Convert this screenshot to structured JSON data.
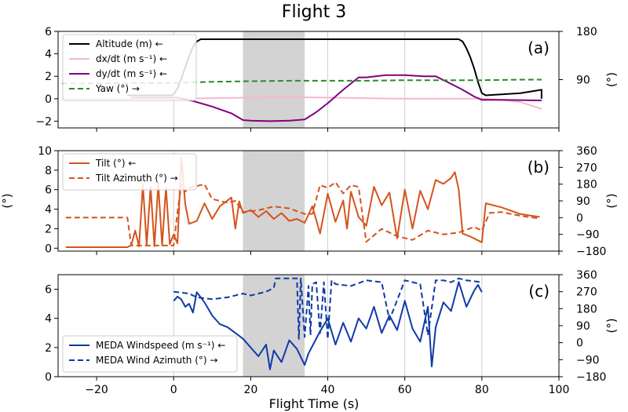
{
  "figure": {
    "title": "Flight 3",
    "xlabel": "Flight Time (s)",
    "xlim": [
      -30,
      100
    ],
    "xticks": [
      -20,
      0,
      20,
      40,
      60,
      80,
      100
    ],
    "shaded_region": [
      18,
      34
    ],
    "vertical_grid": [
      0,
      20,
      40,
      60,
      80
    ]
  },
  "chart_data": [
    {
      "type": "line",
      "panel_label": "(a)",
      "ylim_left": [
        -2.6,
        6
      ],
      "yticks_left": [
        -2,
        0,
        2,
        4,
        6
      ],
      "ylim_right": [
        0,
        180
      ],
      "yticks_right": [
        90,
        180
      ],
      "yticks_right_labels": [
        "90",
        "180"
      ],
      "ylabel_right": "(°)",
      "legend_position": "upper-left",
      "series": [
        {
          "name": "Altitude (m) ←",
          "axis": "left",
          "color": "#000000",
          "dash": "solid",
          "x": [
            -12,
            -0.5,
            0,
            1,
            2,
            3,
            4,
            5,
            6,
            7,
            20,
            40,
            60,
            74,
            75,
            76,
            77,
            78,
            79,
            80,
            81,
            90,
            95.5,
            95.5
          ],
          "y": [
            0.3,
            0.3,
            0.4,
            0.9,
            1.8,
            2.8,
            3.8,
            4.6,
            5.1,
            5.3,
            5.3,
            5.3,
            5.3,
            5.3,
            5.1,
            4.5,
            3.7,
            2.7,
            1.5,
            0.5,
            0.3,
            0.5,
            0.8,
            0
          ]
        },
        {
          "name": "dx/dt (m s⁻¹) ←",
          "axis": "left",
          "color": "#f4b8cf",
          "dash": "solid",
          "x": [
            -29,
            -20,
            -10,
            0,
            10,
            20,
            30,
            40,
            50,
            60,
            70,
            80,
            85,
            90,
            95.5
          ],
          "y": [
            0,
            0,
            0,
            0,
            0.05,
            0.1,
            0.15,
            0.1,
            0.05,
            0,
            0,
            0,
            -0.1,
            -0.3,
            -0.9
          ]
        },
        {
          "name": "dy/dt (m s⁻¹) ←",
          "axis": "left",
          "color": "#800080",
          "dash": "solid",
          "x": [
            -11,
            0,
            1,
            5,
            10,
            15,
            18,
            20,
            25,
            30,
            34,
            37,
            40,
            44,
            48,
            50,
            55,
            60,
            65,
            68,
            71,
            75,
            78,
            80,
            85,
            95.5
          ],
          "y": [
            0.1,
            0.1,
            0.1,
            -0.2,
            -0.7,
            -1.3,
            -1.9,
            -1.95,
            -2.0,
            -1.95,
            -1.85,
            -1.2,
            -0.4,
            0.8,
            1.9,
            1.9,
            2.1,
            2.1,
            2.0,
            2.0,
            1.5,
            0.8,
            0.2,
            -0.1,
            -0.1,
            -0.15
          ]
        },
        {
          "name": "Yaw (°) →",
          "axis": "right",
          "color": "#2a8a2a",
          "dash": "dashed",
          "x": [
            -29,
            -20,
            -10,
            0,
            10,
            20,
            30,
            40,
            50,
            60,
            70,
            80,
            90,
            95.5
          ],
          "y": [
            83,
            83,
            84,
            84,
            86,
            87,
            88,
            88,
            88,
            89,
            89,
            89,
            90,
            90
          ]
        }
      ]
    },
    {
      "type": "line",
      "panel_label": "(b)",
      "ylim_left": [
        -0.3,
        10
      ],
      "yticks_left": [
        0,
        2,
        4,
        6,
        8,
        10
      ],
      "ylabel_left": "(°)",
      "ylim_right": [
        -180,
        360
      ],
      "yticks_right": [
        -180,
        -90,
        0,
        90,
        180,
        270,
        360
      ],
      "yticks_right_labels": [
        "−180",
        "−90",
        "0",
        "90",
        "180",
        "270",
        "360"
      ],
      "ylabel_right": "(°)",
      "legend_position": "upper-left",
      "series": [
        {
          "name": "Tilt (°) ←",
          "axis": "left",
          "color": "#d4541c",
          "dash": "solid",
          "x": [
            -28,
            -12,
            -11,
            -10,
            -9,
            -8,
            -7,
            -6,
            -5,
            -4,
            -3,
            -2,
            -1,
            0,
            1,
            2,
            3,
            4,
            6,
            8,
            10,
            12,
            15,
            16,
            17,
            18,
            20,
            22,
            24,
            26,
            28,
            30,
            32,
            34,
            36,
            38,
            40,
            42,
            44,
            45,
            46,
            48,
            50,
            52,
            54,
            56,
            58,
            60,
            62,
            64,
            66,
            68,
            70,
            72,
            73,
            74,
            75,
            77,
            80,
            81,
            85,
            90,
            95
          ],
          "y": [
            0.1,
            0.1,
            0.3,
            1.8,
            0.2,
            6.5,
            0.3,
            6.3,
            0.2,
            6.6,
            0.3,
            6.2,
            0.4,
            1.4,
            0.5,
            9.3,
            4.5,
            2.5,
            2.8,
            4.6,
            3.0,
            4.3,
            5.2,
            2.0,
            4.8,
            3.6,
            3.9,
            3.2,
            3.8,
            3.0,
            3.6,
            2.8,
            3.0,
            2.6,
            4.3,
            1.5,
            5.6,
            2.7,
            4.9,
            2.0,
            5.8,
            3.2,
            2.3,
            6.3,
            4.4,
            5.7,
            1.0,
            6.0,
            2.0,
            5.9,
            4.0,
            7.0,
            6.6,
            7.2,
            7.8,
            6.0,
            1.5,
            1.2,
            0.6,
            4.6,
            4.2,
            3.5,
            3.2
          ]
        },
        {
          "name": "Tilt Azimuth (°) →",
          "axis": "right",
          "color": "#d4541c",
          "dash": "dashed",
          "x": [
            -28,
            -12,
            -11,
            0,
            1,
            2,
            3,
            4,
            6,
            8,
            10,
            14,
            16,
            18,
            22,
            26,
            30,
            34,
            36,
            38,
            40,
            42,
            44,
            46,
            48,
            50,
            54,
            58,
            62,
            66,
            70,
            74,
            78,
            80,
            82,
            85,
            90,
            95
          ],
          "y": [
            0,
            0,
            -150,
            -150,
            30,
            180,
            140,
            160,
            170,
            180,
            100,
            80,
            90,
            30,
            40,
            60,
            50,
            20,
            20,
            175,
            160,
            190,
            130,
            175,
            165,
            -130,
            -60,
            -100,
            -120,
            -70,
            -90,
            -80,
            -50,
            -70,
            25,
            30,
            10,
            -5
          ]
        }
      ]
    },
    {
      "type": "line",
      "panel_label": "(c)",
      "ylim_left": [
        0,
        7
      ],
      "yticks_left": [
        0,
        2,
        4,
        6
      ],
      "ylim_right": [
        -180,
        360
      ],
      "yticks_right": [
        -180,
        -90,
        0,
        90,
        180,
        270,
        360
      ],
      "yticks_right_labels": [
        "−180",
        "−90",
        "0",
        "90",
        "180",
        "270",
        "360"
      ],
      "ylabel_right": "(°)",
      "legend_position": "lower-left",
      "series": [
        {
          "name": "MEDA Windspeed (m s⁻¹) ←",
          "axis": "left",
          "color": "#0f3aa8",
          "dash": "solid",
          "x": [
            0,
            1,
            2,
            3,
            4,
            5,
            6,
            8,
            10,
            12,
            14,
            16,
            18,
            20,
            22,
            24,
            25,
            26,
            28,
            30,
            32,
            34,
            35,
            36,
            38,
            40,
            42,
            44,
            46,
            48,
            50,
            52,
            54,
            56,
            58,
            60,
            62,
            64,
            66,
            67,
            68,
            70,
            72,
            74,
            76,
            78,
            79,
            80
          ],
          "y": [
            5.2,
            5.5,
            5.3,
            4.8,
            5.0,
            4.4,
            5.8,
            5.1,
            4.2,
            3.6,
            3.4,
            3.0,
            2.6,
            2.0,
            1.4,
            2.2,
            0.5,
            1.8,
            1.0,
            2.5,
            1.9,
            0.8,
            1.6,
            2.1,
            3.1,
            4.0,
            2.2,
            3.7,
            2.4,
            4.0,
            3.3,
            4.8,
            3.0,
            4.2,
            3.2,
            5.2,
            3.3,
            2.4,
            4.8,
            0.7,
            3.4,
            5.1,
            4.5,
            6.5,
            4.8,
            5.9,
            6.3,
            5.8
          ]
        },
        {
          "name": "MEDA Wind Azimuth (°) →",
          "axis": "right",
          "color": "#0f3aa8",
          "dash": "dashed",
          "x": [
            0,
            4,
            6,
            10,
            14,
            18,
            20,
            22,
            24,
            26,
            26.5,
            30,
            32,
            32.5,
            33,
            34,
            35,
            35.5,
            36,
            37,
            38,
            39,
            40,
            41,
            42,
            46,
            50,
            54,
            56,
            60,
            64,
            66,
            68,
            70,
            72,
            74,
            76,
            80
          ],
          "y": [
            270,
            260,
            240,
            230,
            240,
            260,
            250,
            260,
            270,
            290,
            340,
            340,
            340,
            20,
            340,
            30,
            300,
            40,
            310,
            320,
            50,
            320,
            20,
            330,
            310,
            300,
            330,
            320,
            120,
            330,
            310,
            40,
            330,
            330,
            320,
            340,
            330,
            320
          ]
        }
      ]
    }
  ]
}
